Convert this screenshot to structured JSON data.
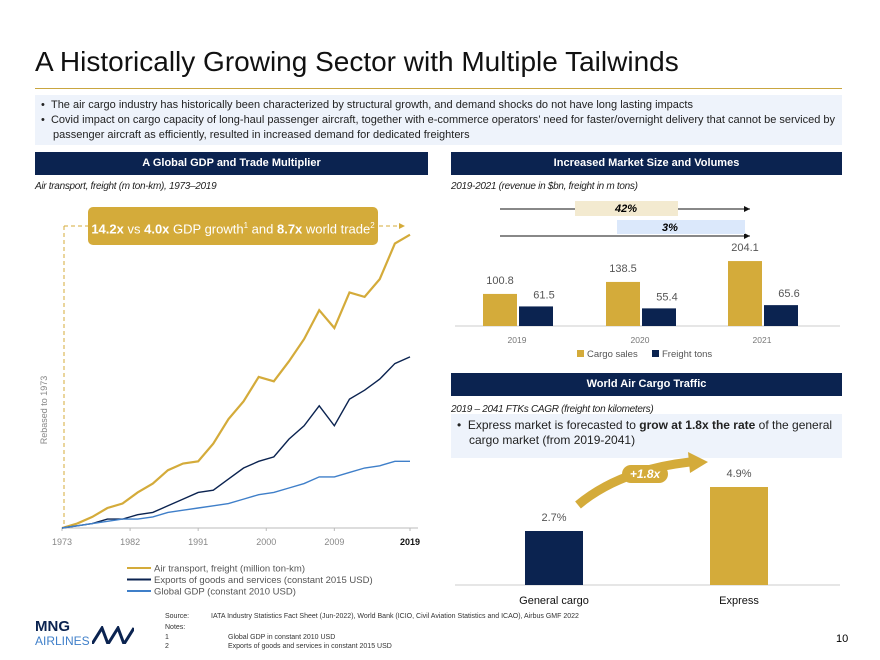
{
  "header": {
    "title": "A Historically Growing Sector with Multiple Tailwinds"
  },
  "bullets": [
    "The air cargo industry has historically been characterized by structural growth, and demand shocks do not have long lasting impacts",
    "Covid impact on cargo capacity of long-haul passenger aircraft, together with e-commerce operators’ need for faster/overnight delivery that cannot be serviced by passenger aircraft as efficiently, resulted in increased demand for dedicated freighters"
  ],
  "chart_data": [
    {
      "type": "line",
      "title": "A Global GDP and Trade Multiplier",
      "subtitle": "Air transport, freight (m ton-km), 1973–2019",
      "callout": [
        "14.2x",
        " vs ",
        "4.0x",
        " GDP growth",
        "1",
        " and ",
        "8.7x",
        " world trade",
        "2"
      ],
      "y_label": "Rebased to 1973",
      "x": [
        1973,
        1975,
        1977,
        1979,
        1981,
        1983,
        1985,
        1987,
        1989,
        1991,
        1993,
        1995,
        1997,
        1999,
        2001,
        2003,
        2005,
        2007,
        2009,
        2011,
        2013,
        2015,
        2017,
        2019
      ],
      "xlim": [
        1973,
        2019
      ],
      "xticks": [
        1973,
        1982,
        1991,
        2000,
        2009,
        2019
      ],
      "ylim": [
        1,
        14.5
      ],
      "series": [
        {
          "name": "Air transport, freight (million ton-km)",
          "color": "#d4ab3a",
          "values": [
            1.0,
            1.2,
            1.5,
            1.9,
            2.1,
            2.6,
            3.0,
            3.6,
            3.9,
            4.0,
            4.8,
            5.9,
            6.7,
            7.8,
            7.6,
            8.5,
            9.5,
            10.8,
            10.0,
            11.6,
            11.4,
            12.2,
            13.8,
            14.2
          ]
        },
        {
          "name": "Exports of goods and services (constant 2015 USD)",
          "color": "#0b2350",
          "values": [
            1.0,
            1.1,
            1.2,
            1.4,
            1.4,
            1.6,
            1.7,
            2.0,
            2.3,
            2.6,
            2.7,
            3.2,
            3.7,
            4.0,
            4.2,
            5.0,
            5.6,
            6.5,
            5.6,
            6.8,
            7.2,
            7.7,
            8.4,
            8.7
          ]
        },
        {
          "name": "Global GDP (constant 2010 USD)",
          "color": "#3f7fc9",
          "values": [
            1.0,
            1.1,
            1.2,
            1.3,
            1.4,
            1.4,
            1.5,
            1.7,
            1.8,
            1.9,
            2.0,
            2.1,
            2.3,
            2.5,
            2.6,
            2.8,
            3.0,
            3.3,
            3.3,
            3.5,
            3.7,
            3.8,
            4.0,
            4.0
          ]
        }
      ]
    },
    {
      "type": "bar",
      "title": "Increased Market Size and Volumes",
      "subtitle": "2019-2021 (revenue in $bn, freight in m tons)",
      "annotations": [
        "42%",
        "3%"
      ],
      "categories": [
        "2019",
        "2020",
        "2021"
      ],
      "ylim": [
        0,
        220
      ],
      "series": [
        {
          "name": "Cargo sales",
          "color": "#d4ab3a",
          "values": [
            100.8,
            138.5,
            204.1
          ]
        },
        {
          "name": "Freight tons",
          "color": "#0b2350",
          "values": [
            61.5,
            55.4,
            65.6
          ]
        }
      ]
    },
    {
      "type": "bar",
      "title": "World Air Cargo Traffic",
      "subtitle": "2019 – 2041 FTKs CAGR (freight ton kilometers)",
      "bullet": [
        "Express market is forecasted to ",
        "grow at 1.8x the rate",
        " of the general cargo market (from 2019-2041)"
      ],
      "annotation": "+1.8x",
      "categories": [
        "General cargo",
        "Express"
      ],
      "values": [
        2.7,
        4.9
      ],
      "value_labels": [
        "2.7%",
        "4.9%"
      ],
      "colors": [
        "#0b2350",
        "#d4ab3a"
      ],
      "ylim": [
        0,
        5
      ]
    }
  ],
  "footer": {
    "source_label": "Source:",
    "source": "IATA Industry Statistics Fact Sheet (Jun-2022), World Bank (ICIO, Civil Aviation Statistics and ICAO), Airbus GMF 2022",
    "notes_label": "Notes:",
    "notes": [
      {
        "number": "1",
        "text": "Global GDP in constant 2010 USD"
      },
      {
        "number": "2",
        "text": "Exports of goods and services in constant 2015 USD"
      }
    ],
    "page": "10",
    "logo": [
      "MNG",
      "AIRLINES"
    ]
  }
}
